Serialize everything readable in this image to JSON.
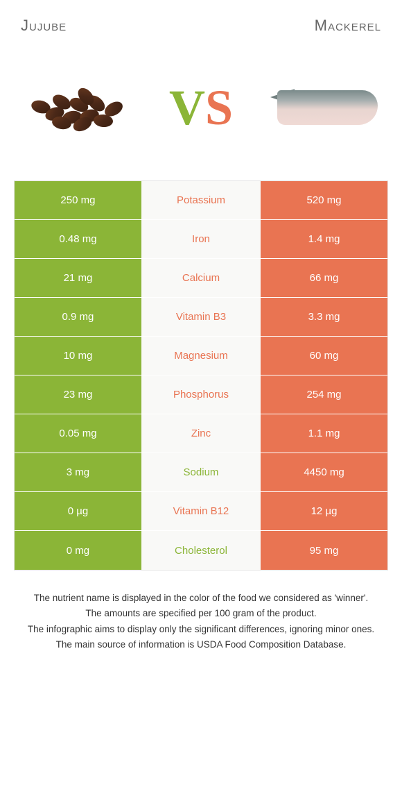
{
  "header": {
    "left_title": "Jujube",
    "right_title": "Mackerel"
  },
  "colors": {
    "green": "#8bb537",
    "orange": "#e97452",
    "row_alt_bg": "#f9f9f7",
    "text_gray": "#666666"
  },
  "vs": {
    "v": "V",
    "s": "S"
  },
  "table": {
    "left_color": "#8bb537",
    "right_color": "#e97452",
    "rows": [
      {
        "left": "250 mg",
        "mid": "Potassium",
        "right": "520 mg",
        "winner": "right"
      },
      {
        "left": "0.48 mg",
        "mid": "Iron",
        "right": "1.4 mg",
        "winner": "right"
      },
      {
        "left": "21 mg",
        "mid": "Calcium",
        "right": "66 mg",
        "winner": "right"
      },
      {
        "left": "0.9 mg",
        "mid": "Vitamin B3",
        "right": "3.3 mg",
        "winner": "right"
      },
      {
        "left": "10 mg",
        "mid": "Magnesium",
        "right": "60 mg",
        "winner": "right"
      },
      {
        "left": "23 mg",
        "mid": "Phosphorus",
        "right": "254 mg",
        "winner": "right"
      },
      {
        "left": "0.05 mg",
        "mid": "Zinc",
        "right": "1.1 mg",
        "winner": "right"
      },
      {
        "left": "3 mg",
        "mid": "Sodium",
        "right": "4450 mg",
        "winner": "left"
      },
      {
        "left": "0 µg",
        "mid": "Vitamin B12",
        "right": "12 µg",
        "winner": "right"
      },
      {
        "left": "0 mg",
        "mid": "Cholesterol",
        "right": "95 mg",
        "winner": "left"
      }
    ]
  },
  "footer": {
    "line1": "The nutrient name is displayed in the color of the food we considered as 'winner'.",
    "line2": "The amounts are specified per 100 gram of the product.",
    "line3": "The infographic aims to display only the significant differences, ignoring minor ones.",
    "line4": "The main source of information is USDA Food Composition Database."
  }
}
